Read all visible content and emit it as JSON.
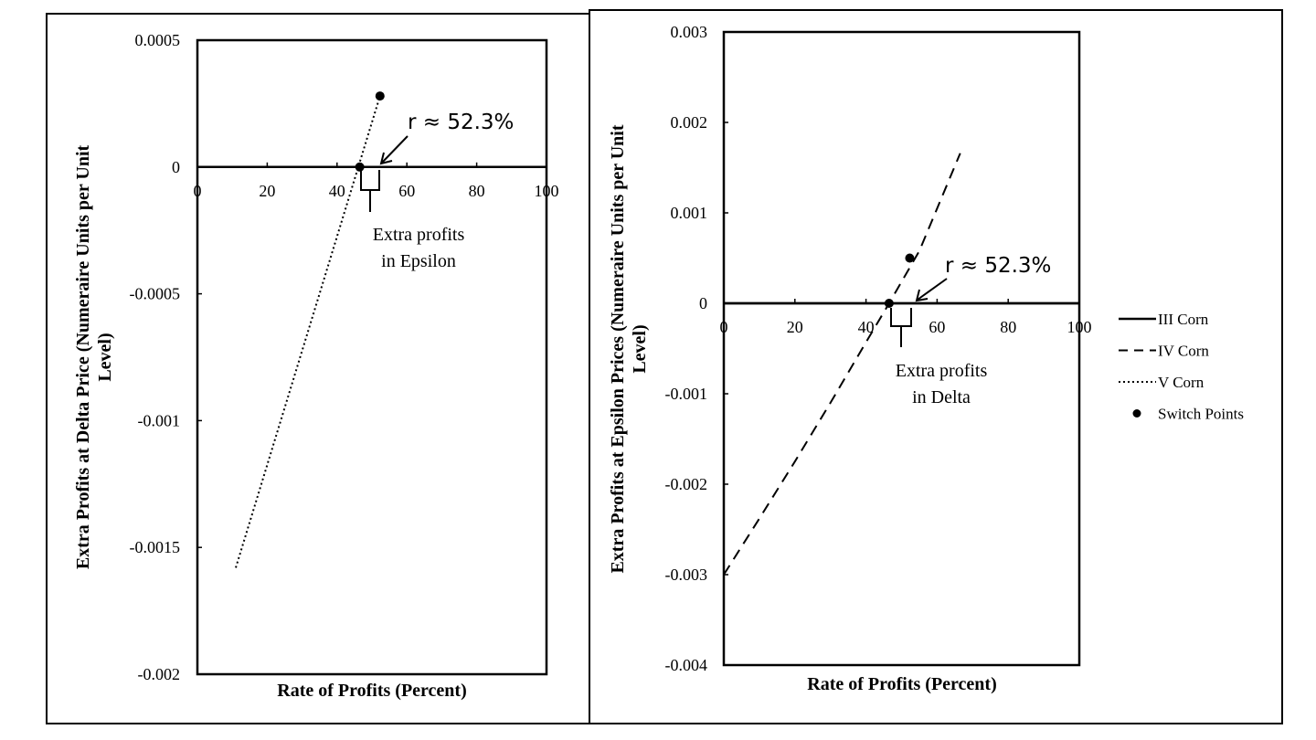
{
  "chart_data": [
    {
      "type": "line",
      "title": "",
      "xlabel": "Rate of Profits (Percent)",
      "ylabel": [
        "Extra Profits at Delta  Price (Numeraire  Units per Unit",
        "Level)"
      ],
      "xlim": [
        0,
        100
      ],
      "ylim": [
        -0.002,
        0.0005
      ],
      "xticks": [
        "0",
        "20",
        "40",
        "60",
        "80",
        "100"
      ],
      "yticks": [
        "0.0005",
        "0",
        "-0.0005",
        "-0.001",
        "-0.0015",
        "-0.002"
      ],
      "series": [
        {
          "name": "III Corn",
          "style": "solid",
          "x": [
            11,
            52.3
          ],
          "y": [
            0,
            0
          ]
        },
        {
          "name": "V Corn",
          "style": "dotted",
          "x": [
            11,
            52.3
          ],
          "y": [
            -0.00158,
            0.00028
          ]
        }
      ],
      "switch_points": [
        {
          "x": 46.5,
          "y": 0
        },
        {
          "x": 52.3,
          "y": 0.00028
        }
      ],
      "annotation_r": "r ≈ 52.3%",
      "annotation_text": [
        "Extra profits",
        "in Epsilon"
      ]
    },
    {
      "type": "line",
      "title": "",
      "xlabel": "Rate of Profits (Percent)",
      "ylabel": [
        "Extra Profits at Epsilon Prices (Numeraire Units per Unit",
        "Level)"
      ],
      "xlim": [
        0,
        100
      ],
      "ylim": [
        -0.004,
        0.003
      ],
      "xticks": [
        "0",
        "20",
        "40",
        "60",
        "80",
        "100"
      ],
      "yticks": [
        "0.003",
        "0.002",
        "0.001",
        "0",
        "-0.001",
        "-0.002",
        "-0.003",
        "-0.004"
      ],
      "series": [
        {
          "name": "III Corn",
          "style": "solid",
          "x": [
            0,
            100
          ],
          "y": [
            0,
            0
          ]
        },
        {
          "name": "IV Corn",
          "style": "dashed",
          "x": [
            0,
            10,
            20,
            30,
            40,
            46.5,
            55,
            66.5
          ],
          "y": [
            -0.003,
            -0.00238,
            -0.00175,
            -0.0011,
            -0.00043,
            0,
            0.00058,
            0.00166
          ]
        }
      ],
      "switch_points": [
        {
          "x": 46.5,
          "y": 0
        },
        {
          "x": 52.3,
          "y": 0.0005
        }
      ],
      "annotation_r": "r ≈ 52.3%",
      "annotation_text": [
        "Extra profits",
        "in Delta"
      ]
    }
  ],
  "legend": [
    {
      "label": "III Corn",
      "style": "solid"
    },
    {
      "label": "IV Corn",
      "style": "dashed"
    },
    {
      "label": "V Corn",
      "style": "dotted"
    },
    {
      "label": "Switch Points",
      "style": "marker"
    }
  ]
}
